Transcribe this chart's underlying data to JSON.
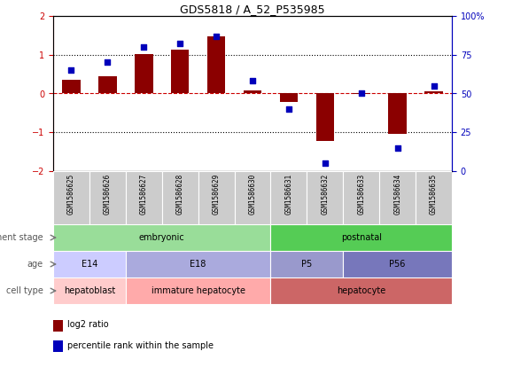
{
  "title": "GDS5818 / A_52_P535985",
  "samples": [
    "GSM1586625",
    "GSM1586626",
    "GSM1586627",
    "GSM1586628",
    "GSM1586629",
    "GSM1586630",
    "GSM1586631",
    "GSM1586632",
    "GSM1586633",
    "GSM1586634",
    "GSM1586635"
  ],
  "log2_ratio": [
    0.35,
    0.45,
    1.02,
    1.12,
    1.48,
    0.07,
    -0.22,
    -1.22,
    -0.02,
    -1.05,
    0.05
  ],
  "percentile": [
    65,
    70,
    80,
    82,
    87,
    58,
    40,
    5,
    50,
    15,
    55
  ],
  "ylim_left": [
    -2,
    2
  ],
  "ylim_right": [
    0,
    100
  ],
  "yticks_left": [
    -2,
    -1,
    0,
    1,
    2
  ],
  "yticks_right": [
    0,
    25,
    50,
    75,
    100
  ],
  "ytick_labels_right": [
    "0",
    "25",
    "50",
    "75",
    "100%"
  ],
  "bar_color": "#8b0000",
  "dot_color": "#0000bb",
  "bar_width": 0.5,
  "dot_size": 20,
  "development_stage_label": "development stage",
  "age_label": "age",
  "cell_type_label": "cell type",
  "dev_stage_groups": [
    {
      "label": "embryonic",
      "start": 0,
      "end": 5,
      "color": "#99dd99"
    },
    {
      "label": "postnatal",
      "start": 6,
      "end": 10,
      "color": "#55cc55"
    }
  ],
  "age_groups": [
    {
      "label": "E14",
      "start": 0,
      "end": 1,
      "color": "#ccccff"
    },
    {
      "label": "E18",
      "start": 2,
      "end": 5,
      "color": "#aaaadd"
    },
    {
      "label": "P5",
      "start": 6,
      "end": 7,
      "color": "#9999cc"
    },
    {
      "label": "P56",
      "start": 8,
      "end": 10,
      "color": "#7777bb"
    }
  ],
  "cell_type_groups": [
    {
      "label": "hepatoblast",
      "start": 0,
      "end": 1,
      "color": "#ffcccc"
    },
    {
      "label": "immature hepatocyte",
      "start": 2,
      "end": 5,
      "color": "#ffaaaa"
    },
    {
      "label": "hepatocyte",
      "start": 6,
      "end": 10,
      "color": "#cc6666"
    }
  ],
  "legend_items": [
    {
      "label": "log2 ratio",
      "color": "#8b0000"
    },
    {
      "label": "percentile rank within the sample",
      "color": "#0000bb"
    }
  ],
  "background_color": "#ffffff",
  "plot_bg_color": "#ffffff",
  "sample_label_bg": "#cccccc"
}
